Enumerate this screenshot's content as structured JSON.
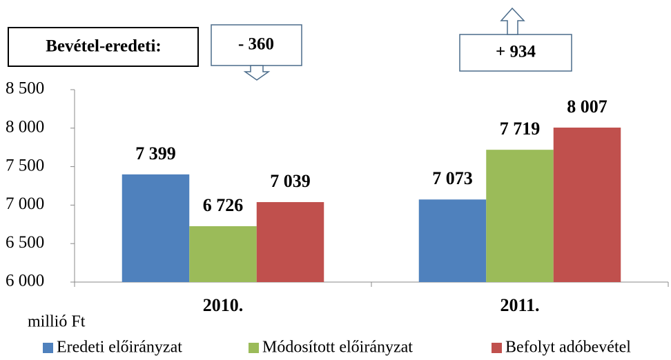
{
  "chart_data": {
    "type": "bar",
    "categories": [
      "2010.",
      "2011."
    ],
    "series": [
      {
        "name": "Eredeti előirányzat",
        "color": "#4f81bd",
        "values": [
          7399,
          7073
        ],
        "value_labels": [
          "7 399",
          "7 073"
        ]
      },
      {
        "name": "Módosított előirányzat",
        "color": "#9bbb59",
        "values": [
          6726,
          7719
        ],
        "value_labels": [
          "6 726",
          "7 719"
        ]
      },
      {
        "name": "Befolyt adóbevétel",
        "color": "#c0504d",
        "values": [
          7039,
          8007
        ],
        "value_labels": [
          "7 039",
          "8 007"
        ]
      }
    ],
    "ylim": [
      6000,
      8500
    ],
    "yticks": [
      {
        "value": 6000,
        "label": "6 000"
      },
      {
        "value": 6500,
        "label": "6 500"
      },
      {
        "value": 7000,
        "label": "7 000"
      },
      {
        "value": 7500,
        "label": "7 500"
      },
      {
        "value": 8000,
        "label": "8 000"
      },
      {
        "value": 8500,
        "label": "8 500"
      }
    ],
    "y_unit_label": "millió Ft",
    "annotations": [
      "Bevétel-eredeti:",
      "- 360",
      "+ 934"
    ],
    "legend": "bottom"
  }
}
